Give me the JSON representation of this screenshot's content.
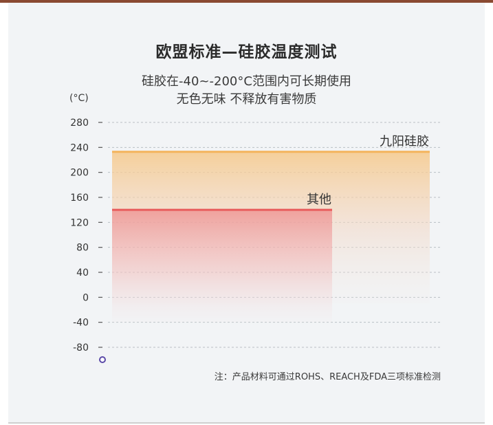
{
  "header": {
    "title": "欧盟标准—硅胶温度测试",
    "subtitle_line1": "硅胶在-40~-200°C范围内可长期使用",
    "subtitle_line2": "无色无味 不释放有害物质"
  },
  "footnote": "注：产品材料可通过ROHS、REACH及FDA三项标准检测",
  "chart_data": {
    "type": "bar",
    "yunit": "(°C)",
    "yticks": [
      280,
      240,
      200,
      160,
      120,
      80,
      40,
      0,
      -40,
      -80
    ],
    "ylim": [
      -80,
      280
    ],
    "grid": true,
    "series": [
      {
        "name": "九阳硅胶",
        "min": -10,
        "max": 233,
        "color": "#f3c07a"
      },
      {
        "name": "其他",
        "min": -40,
        "max": 140,
        "color": "#ea6a6a"
      }
    ],
    "colors": {
      "thermometer_top": "#d63c3c",
      "thermometer_mid": "#f0a060",
      "thermometer_bottom": "#5b4aa8"
    }
  }
}
